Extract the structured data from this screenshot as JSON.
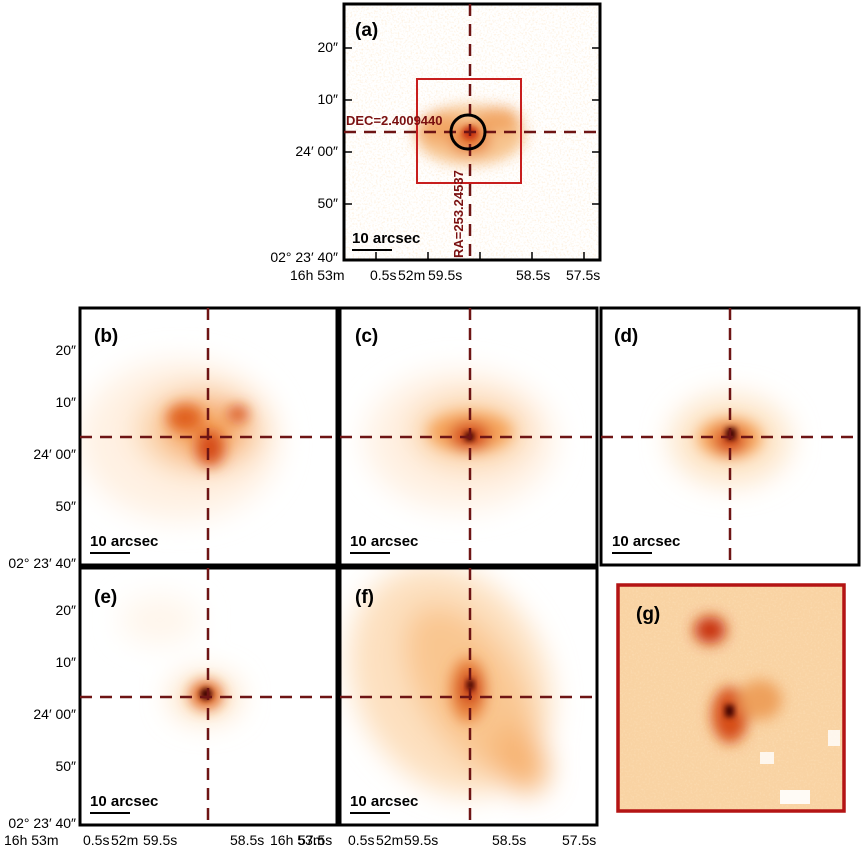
{
  "colors": {
    "crosshair": "#6e1414",
    "frame": "#000000",
    "box": "#c81e1e",
    "circle": "#000000",
    "panel_g_frame": "#b41414",
    "cmap_low": "#fff8ee",
    "cmap_mid": "#f5a35a",
    "cmap_high": "#c8320a",
    "cmap_peak": "#3a0505"
  },
  "panels": [
    {
      "id": "a",
      "label": "(a)",
      "scale": "10 arcsec"
    },
    {
      "id": "b",
      "label": "(b)",
      "scale": "10 arcsec"
    },
    {
      "id": "c",
      "label": "(c)",
      "scale": "10 arcsec"
    },
    {
      "id": "d",
      "label": "(d)",
      "scale": "10 arcsec"
    },
    {
      "id": "e",
      "label": "(e)",
      "scale": "10 arcsec"
    },
    {
      "id": "f",
      "label": "(f)",
      "scale": "10 arcsec"
    },
    {
      "id": "g",
      "label": "(g)"
    }
  ],
  "annotations": {
    "dec": "DEC=2.4009440",
    "ra": "RA=253.24537"
  },
  "dec_ticks": [
    "20″",
    "10″",
    "24′ 00″",
    "50″",
    "02° 23′ 40″"
  ],
  "ra_ticks_a": [
    "16h 53m",
    "0.5s",
    "52m",
    "59.5s",
    "58.5s",
    "57.5s"
  ],
  "ra_ticks_bottom_e": [
    "16h 53m",
    "0.5s",
    "52m",
    "59.5s",
    "58.5s",
    "57.5s"
  ],
  "ra_ticks_bottom_f": [
    "16h 53m",
    "0.5s",
    "52m",
    "59.5s",
    "58.5s",
    "57.5s"
  ]
}
